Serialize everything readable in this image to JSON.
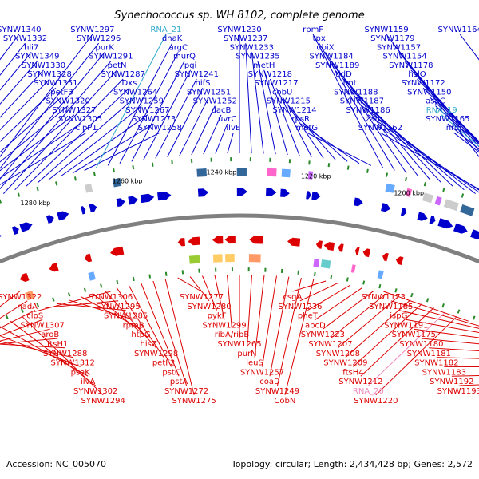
{
  "title": "Synechococcus sp. WH 8102, complete genome",
  "footer": {
    "accession": "Accession: NC_005070",
    "summary": "Topology: circular; Length: 2,434,428 bp; Genes: 2,572"
  },
  "colors": {
    "forward": "#0000cc",
    "reverse": "#dd0000",
    "forward_rna": "#33aacc",
    "reverse_rna": "#ee88bb",
    "backbone": "#808080",
    "tick": "#2a8a2a"
  },
  "ticks": [
    "1320 kbp",
    "1300 kbp",
    "1280 kbp",
    "1260 kbp",
    "1240 kbp",
    "1220 kbp",
    "1200 kbp",
    "1180 kbp",
    "1160 kbp"
  ],
  "forward_labels": [
    {
      "text": "SYNW1340",
      "kind": "gene"
    },
    {
      "text": "SYNW1332",
      "kind": "gene"
    },
    {
      "text": "hli7",
      "kind": "gene"
    },
    {
      "text": "SYNW1349",
      "kind": "gene"
    },
    {
      "text": "SYNW1330",
      "kind": "gene"
    },
    {
      "text": "SYNW1328",
      "kind": "gene"
    },
    {
      "text": "SYNW1351",
      "kind": "gene"
    },
    {
      "text": "petF3",
      "kind": "gene"
    },
    {
      "text": "SYNW1320",
      "kind": "gene"
    },
    {
      "text": "SYNW1327",
      "kind": "gene"
    },
    {
      "text": "SYNW1305",
      "kind": "gene"
    },
    {
      "text": "clpP1",
      "kind": "gene"
    },
    {
      "text": "SYNW1297",
      "kind": "gene"
    },
    {
      "text": "SYNW1296",
      "kind": "gene"
    },
    {
      "text": "purK",
      "kind": "gene"
    },
    {
      "text": "SYNW1291",
      "kind": "gene"
    },
    {
      "text": "petN",
      "kind": "gene"
    },
    {
      "text": "SYNW1287",
      "kind": "gene"
    },
    {
      "text": "Dxs",
      "kind": "gene"
    },
    {
      "text": "SYNW1264",
      "kind": "gene"
    },
    {
      "text": "SYNW1259",
      "kind": "gene"
    },
    {
      "text": "SYNW1267",
      "kind": "gene"
    },
    {
      "text": "SYNW1273",
      "kind": "gene"
    },
    {
      "text": "SYNW1258",
      "kind": "gene"
    },
    {
      "text": "RNA_21",
      "kind": "rna"
    },
    {
      "text": "dnaK",
      "kind": "gene"
    },
    {
      "text": "argC",
      "kind": "gene"
    },
    {
      "text": "murQ",
      "kind": "gene"
    },
    {
      "text": "pgi",
      "kind": "gene"
    },
    {
      "text": "SYNW1241",
      "kind": "gene"
    },
    {
      "text": "nifS",
      "kind": "gene"
    },
    {
      "text": "SYNW1251",
      "kind": "gene"
    },
    {
      "text": "SYNW1252",
      "kind": "gene"
    },
    {
      "text": "dacB",
      "kind": "gene"
    },
    {
      "text": "uvrC",
      "kind": "gene"
    },
    {
      "text": "ilvE",
      "kind": "gene"
    },
    {
      "text": "SYNW1230",
      "kind": "gene"
    },
    {
      "text": "SYNW1237",
      "kind": "gene"
    },
    {
      "text": "SYNW1233",
      "kind": "gene"
    },
    {
      "text": "SYNW1235",
      "kind": "gene"
    },
    {
      "text": "metH",
      "kind": "gene"
    },
    {
      "text": "SYNW1218",
      "kind": "gene"
    },
    {
      "text": "SYNW1217",
      "kind": "gene"
    },
    {
      "text": "cobU",
      "kind": "gene"
    },
    {
      "text": "SYNW1215",
      "kind": "gene"
    },
    {
      "text": "SYNW1214",
      "kind": "gene"
    },
    {
      "text": "rpsR",
      "kind": "gene"
    },
    {
      "text": "metG",
      "kind": "gene"
    },
    {
      "text": "rpmF",
      "kind": "gene"
    },
    {
      "text": "tpx",
      "kind": "gene"
    },
    {
      "text": "ubiX",
      "kind": "gene"
    },
    {
      "text": "SYNW1184",
      "kind": "gene"
    },
    {
      "text": "SYNW1189",
      "kind": "gene"
    },
    {
      "text": "tldD",
      "kind": "gene"
    },
    {
      "text": "fmt",
      "kind": "gene"
    },
    {
      "text": "SYNW1188",
      "kind": "gene"
    },
    {
      "text": "SYNW1187",
      "kind": "gene"
    },
    {
      "text": "SYNW1186",
      "kind": "gene"
    },
    {
      "text": "zam",
      "kind": "gene"
    },
    {
      "text": "SYNW1162",
      "kind": "gene"
    },
    {
      "text": "SYNW1159",
      "kind": "gene"
    },
    {
      "text": "SYNW1179",
      "kind": "gene"
    },
    {
      "text": "SYNW1157",
      "kind": "gene"
    },
    {
      "text": "SYNW1154",
      "kind": "gene"
    },
    {
      "text": "SYNW1178",
      "kind": "gene"
    },
    {
      "text": "hslO",
      "kind": "gene"
    },
    {
      "text": "SYNW1172",
      "kind": "gene"
    },
    {
      "text": "SYNW1150",
      "kind": "gene"
    },
    {
      "text": "aspC",
      "kind": "gene"
    },
    {
      "text": "RNA_19",
      "kind": "rna"
    },
    {
      "text": "SYNW1165",
      "kind": "gene"
    },
    {
      "text": "nrdJ",
      "kind": "gene"
    },
    {
      "text": "SYNW1164",
      "kind": "gene"
    }
  ],
  "reverse_labels": [
    {
      "text": "SYNW1322",
      "kind": "gene"
    },
    {
      "text": "nadA",
      "kind": "gene"
    },
    {
      "text": "clpS",
      "kind": "gene"
    },
    {
      "text": "SYNW1307",
      "kind": "gene"
    },
    {
      "text": "aroB",
      "kind": "gene"
    },
    {
      "text": "ftsH1",
      "kind": "gene"
    },
    {
      "text": "SYNW1288",
      "kind": "gene"
    },
    {
      "text": "SYNW1312",
      "kind": "gene"
    },
    {
      "text": "psaK",
      "kind": "gene"
    },
    {
      "text": "ilvA",
      "kind": "gene"
    },
    {
      "text": "SYNW1302",
      "kind": "gene"
    },
    {
      "text": "SYNW1294",
      "kind": "gene"
    },
    {
      "text": "SYNW1306",
      "kind": "gene"
    },
    {
      "text": "SYNW1295",
      "kind": "gene"
    },
    {
      "text": "SYNW1285",
      "kind": "gene"
    },
    {
      "text": "rpmB",
      "kind": "gene"
    },
    {
      "text": "htpG",
      "kind": "gene"
    },
    {
      "text": "hisZ",
      "kind": "gene"
    },
    {
      "text": "SYNW1298",
      "kind": "gene"
    },
    {
      "text": "petF2",
      "kind": "gene"
    },
    {
      "text": "pstC",
      "kind": "gene"
    },
    {
      "text": "pstA",
      "kind": "gene"
    },
    {
      "text": "SYNW1272",
      "kind": "gene"
    },
    {
      "text": "SYNW1275",
      "kind": "gene"
    },
    {
      "text": "SYNW1277",
      "kind": "gene"
    },
    {
      "text": "SYNW1280",
      "kind": "gene"
    },
    {
      "text": "pykF",
      "kind": "gene"
    },
    {
      "text": "SYNW1299",
      "kind": "gene"
    },
    {
      "text": "ribA/ribB",
      "kind": "gene"
    },
    {
      "text": "SYNW1265",
      "kind": "gene"
    },
    {
      "text": "purN",
      "kind": "gene"
    },
    {
      "text": "leuS",
      "kind": "gene"
    },
    {
      "text": "SYNW1257",
      "kind": "gene"
    },
    {
      "text": "coaD",
      "kind": "gene"
    },
    {
      "text": "SYNW1249",
      "kind": "gene"
    },
    {
      "text": "CobN",
      "kind": "gene"
    },
    {
      "text": "csgA",
      "kind": "gene"
    },
    {
      "text": "SYNW1236",
      "kind": "gene"
    },
    {
      "text": "pheT",
      "kind": "gene"
    },
    {
      "text": "apcD",
      "kind": "gene"
    },
    {
      "text": "SYNW1223",
      "kind": "gene"
    },
    {
      "text": "SYNW1207",
      "kind": "gene"
    },
    {
      "text": "SYNW1208",
      "kind": "gene"
    },
    {
      "text": "SYNW1209",
      "kind": "gene"
    },
    {
      "text": "ftsH4",
      "kind": "gene"
    },
    {
      "text": "SYNW1212",
      "kind": "gene"
    },
    {
      "text": "RNA_20",
      "kind": "rna"
    },
    {
      "text": "SYNW1220",
      "kind": "gene"
    },
    {
      "text": "SYNW1173",
      "kind": "gene"
    },
    {
      "text": "SYNW1185",
      "kind": "gene"
    },
    {
      "text": "ispG",
      "kind": "gene"
    },
    {
      "text": "SYNW1191",
      "kind": "gene"
    },
    {
      "text": "SYNW1175",
      "kind": "gene"
    },
    {
      "text": "SYNW1180",
      "kind": "gene"
    },
    {
      "text": "SYNW1181",
      "kind": "gene"
    },
    {
      "text": "SYNW1182",
      "kind": "gene"
    },
    {
      "text": "SYNW1183",
      "kind": "gene"
    },
    {
      "text": "SYNW1192",
      "kind": "gene"
    },
    {
      "text": "SYNW1193",
      "kind": "gene"
    }
  ]
}
